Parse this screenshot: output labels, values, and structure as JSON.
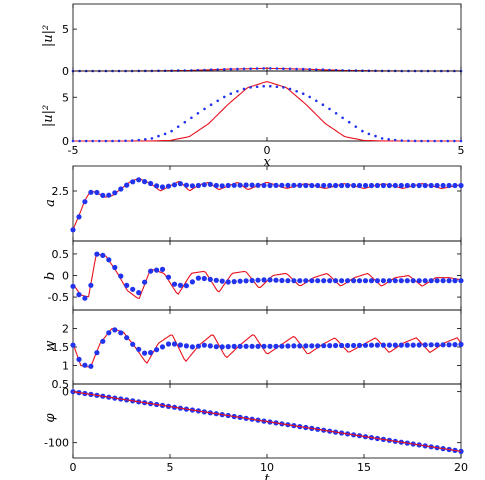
{
  "chart_data": [
    {
      "type": "line",
      "panel": "top",
      "ylabel": "|u|²",
      "xlim": [
        -5,
        5
      ],
      "ylim": [
        0,
        8
      ],
      "yticks": [
        0,
        5
      ],
      "grid": false,
      "series": [
        {
          "kind": "solid",
          "color": "#e8111e",
          "x": [
            -5,
            -4,
            -3,
            -2,
            -1,
            0,
            1,
            2,
            3,
            4,
            5
          ],
          "y": [
            0.0,
            0.0,
            0.01,
            0.06,
            0.22,
            0.32,
            0.22,
            0.06,
            0.01,
            0.0,
            0.0
          ]
        },
        {
          "kind": "dots",
          "color": "#2233ee",
          "x": [
            -5,
            -4,
            -3,
            -2,
            -1,
            0,
            1,
            2,
            3,
            4,
            5
          ],
          "y": [
            0.0,
            0.0,
            0.01,
            0.06,
            0.22,
            0.32,
            0.22,
            0.06,
            0.01,
            0.0,
            0.0
          ]
        }
      ]
    },
    {
      "type": "line",
      "panel": "middle",
      "ylabel": "|u|²",
      "xlabel": "x",
      "xlim": [
        -5,
        5
      ],
      "ylim": [
        0,
        8
      ],
      "xticks": [
        -5,
        0,
        5
      ],
      "yticks": [
        0,
        5
      ],
      "grid": false,
      "series": [
        {
          "kind": "solid",
          "color": "#e8111e",
          "x": [
            -5,
            -4,
            -3,
            -2.5,
            -2,
            -1.5,
            -1,
            -0.5,
            0,
            0.5,
            1,
            1.5,
            2,
            2.5,
            3,
            4,
            5
          ],
          "y": [
            0.0,
            0.0,
            0.01,
            0.06,
            0.5,
            2.0,
            4.2,
            6.1,
            6.8,
            6.1,
            4.2,
            2.0,
            0.5,
            0.06,
            0.01,
            0.0,
            0.0
          ]
        },
        {
          "kind": "dots",
          "color": "#2233ee",
          "x": [
            -5,
            -4,
            -3.5,
            -3,
            -2.5,
            -2,
            -1.5,
            -1,
            -0.5,
            0,
            0.5,
            1,
            1.5,
            2,
            2.5,
            3,
            3.5,
            4,
            5
          ],
          "y": [
            0.0,
            0.0,
            0.03,
            0.25,
            1.0,
            2.5,
            4.0,
            5.3,
            6.1,
            6.3,
            6.1,
            5.3,
            4.0,
            2.5,
            1.0,
            0.25,
            0.03,
            0.0,
            0.0
          ]
        }
      ]
    },
    {
      "type": "line",
      "panel": "a",
      "ylabel": "a",
      "xlim": [
        0,
        20
      ],
      "ylim": [
        0.5,
        3.5
      ],
      "yticks": [
        2.5
      ],
      "grid": false,
      "series": [
        {
          "kind": "solid",
          "color": "#e8111e",
          "x": [
            0,
            0.3,
            0.6,
            0.9,
            1.2,
            1.6,
            2,
            2.5,
            3,
            3.4,
            4,
            4.5,
            5,
            5.5,
            6,
            6.5,
            7,
            7.5,
            8,
            8.5,
            9,
            9.5,
            10,
            11,
            12,
            13,
            14,
            15,
            16,
            17,
            18,
            19,
            20
          ],
          "y": [
            0.95,
            1.5,
            2.1,
            2.5,
            2.45,
            2.25,
            2.3,
            2.6,
            2.9,
            3.0,
            2.8,
            2.5,
            2.7,
            2.9,
            2.5,
            2.75,
            2.85,
            2.55,
            2.7,
            2.85,
            2.55,
            2.7,
            2.85,
            2.6,
            2.8,
            2.6,
            2.8,
            2.6,
            2.8,
            2.6,
            2.8,
            2.6,
            2.75
          ]
        },
        {
          "kind": "dots",
          "color": "#2233ee",
          "x": [
            0,
            0.3,
            0.6,
            0.9,
            1.2,
            1.6,
            2,
            2.5,
            3,
            3.4,
            4,
            4.5,
            5,
            5.5,
            6,
            6.5,
            7,
            7.5,
            8,
            9,
            10,
            11,
            12,
            13,
            14,
            15,
            16,
            17,
            18,
            19,
            20
          ],
          "y": [
            0.95,
            1.45,
            2.05,
            2.45,
            2.45,
            2.3,
            2.35,
            2.6,
            2.85,
            2.95,
            2.8,
            2.65,
            2.7,
            2.8,
            2.7,
            2.72,
            2.78,
            2.7,
            2.72,
            2.74,
            2.72,
            2.73,
            2.72,
            2.72,
            2.72,
            2.72,
            2.72,
            2.72,
            2.72,
            2.72,
            2.72
          ]
        }
      ]
    },
    {
      "type": "line",
      "panel": "b",
      "ylabel": "b",
      "xlim": [
        0,
        20
      ],
      "ylim": [
        -0.8,
        0.8
      ],
      "yticks": [
        -0.5,
        0,
        0.5
      ],
      "grid": false,
      "series": [
        {
          "kind": "solid",
          "color": "#e8111e",
          "x": [
            0,
            0.4,
            0.8,
            1.2,
            1.7,
            2.3,
            2.8,
            3.4,
            4,
            4.7,
            5.4,
            6.1,
            6.8,
            7.5,
            8.2,
            8.9,
            9.6,
            10.3,
            11,
            11.7,
            12.4,
            13.1,
            13.8,
            14.5,
            15.2,
            15.9,
            16.6,
            17.3,
            18,
            18.7,
            19.4,
            20
          ],
          "y": [
            -0.2,
            -0.45,
            -0.5,
            0.5,
            0.45,
            0.05,
            -0.35,
            -0.55,
            0.15,
            0.05,
            -0.45,
            0.05,
            0.1,
            -0.4,
            0.05,
            0.1,
            -0.3,
            0.0,
            0.05,
            -0.25,
            -0.05,
            0.05,
            -0.25,
            -0.05,
            0.05,
            -0.25,
            -0.05,
            0.0,
            -0.25,
            -0.05,
            -0.05,
            -0.1
          ]
        },
        {
          "kind": "dots",
          "color": "#2233ee",
          "x": [
            0,
            0.4,
            0.8,
            1.2,
            1.7,
            2.3,
            2.8,
            3.4,
            4,
            4.6,
            5.2,
            5.8,
            6.5,
            7.2,
            8,
            9,
            10,
            11,
            12,
            13,
            14,
            15,
            16,
            17,
            18,
            19,
            20
          ],
          "y": [
            -0.25,
            -0.5,
            -0.55,
            0.5,
            0.45,
            0.1,
            -0.25,
            -0.4,
            0.1,
            0.15,
            -0.2,
            -0.25,
            -0.05,
            -0.1,
            -0.15,
            -0.12,
            -0.1,
            -0.12,
            -0.12,
            -0.12,
            -0.12,
            -0.12,
            -0.12,
            -0.12,
            -0.12,
            -0.12,
            -0.12
          ]
        }
      ]
    },
    {
      "type": "line",
      "panel": "w",
      "ylabel": "w",
      "xlim": [
        0,
        20
      ],
      "ylim": [
        0.5,
        2.5
      ],
      "yticks": [
        0.5,
        1,
        1.5,
        2
      ],
      "grid": false,
      "series": [
        {
          "kind": "solid",
          "color": "#e8111e",
          "x": [
            0,
            0.4,
            0.9,
            1.4,
            2,
            2.6,
            3.2,
            3.8,
            4.4,
            5.1,
            5.8,
            6.5,
            7.2,
            7.9,
            8.6,
            9.3,
            10,
            10.7,
            11.4,
            12.1,
            12.8,
            13.5,
            14.2,
            14.9,
            15.6,
            16.3,
            17,
            17.7,
            18.4,
            19.1,
            19.8,
            20
          ],
          "y": [
            1.6,
            1.0,
            0.95,
            1.6,
            2.0,
            1.9,
            1.5,
            1.05,
            1.6,
            1.85,
            1.1,
            1.55,
            1.85,
            1.2,
            1.55,
            1.85,
            1.3,
            1.55,
            1.8,
            1.3,
            1.55,
            1.75,
            1.35,
            1.55,
            1.75,
            1.35,
            1.6,
            1.75,
            1.35,
            1.6,
            1.75,
            1.6
          ]
        },
        {
          "kind": "dots",
          "color": "#2233ee",
          "x": [
            0,
            0.4,
            0.9,
            1.4,
            2,
            2.6,
            3.2,
            3.8,
            4.4,
            5,
            5.6,
            6.2,
            6.8,
            7.5,
            8.5,
            9.5,
            10.5,
            11.5,
            12.5,
            13.5,
            14.5,
            15.5,
            16.5,
            17.5,
            18.5,
            19.5,
            20
          ],
          "y": [
            1.55,
            1.05,
            0.95,
            1.55,
            2.0,
            1.85,
            1.5,
            1.3,
            1.45,
            1.6,
            1.55,
            1.5,
            1.55,
            1.5,
            1.52,
            1.52,
            1.52,
            1.53,
            1.53,
            1.54,
            1.54,
            1.55,
            1.55,
            1.55,
            1.56,
            1.56,
            1.57
          ]
        }
      ]
    },
    {
      "type": "line",
      "panel": "phi",
      "ylabel": "φ",
      "xlabel": "t",
      "xlim": [
        0,
        20
      ],
      "ylim": [
        -130,
        15
      ],
      "xticks": [
        0,
        5,
        10,
        15,
        20
      ],
      "yticks": [
        -100,
        0
      ],
      "grid": false,
      "series": [
        {
          "kind": "solid",
          "color": "#e8111e",
          "x": [
            0,
            20
          ],
          "y": [
            0,
            -117
          ]
        },
        {
          "kind": "dots",
          "color": "#2233ee",
          "x": [
            0,
            20
          ],
          "y": [
            0,
            -117
          ]
        }
      ]
    }
  ]
}
